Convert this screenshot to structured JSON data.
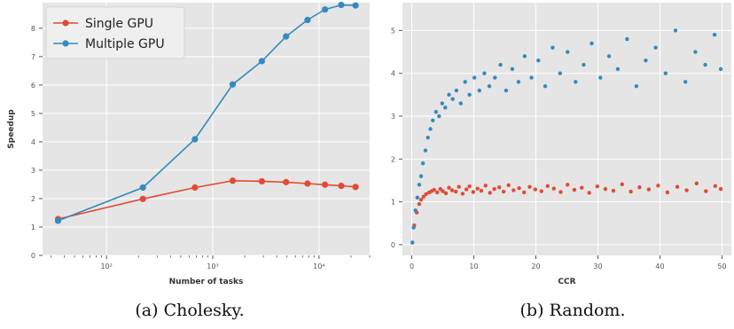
{
  "captions": [
    "(a) Cholesky.",
    "(b) Random."
  ],
  "colors": {
    "panel_bg": "#e5e5e5",
    "grid": "#ffffff",
    "tick": "#555555",
    "single": "#e24a33",
    "multiple": "#348abd"
  },
  "chart_data": [
    {
      "type": "line",
      "xscale": "log",
      "xlim": [
        25,
        30000
      ],
      "ylim": [
        0,
        8.9
      ],
      "xlabel": "Number of tasks",
      "ylabel": "Speedup",
      "xticks": [
        100,
        1000,
        10000
      ],
      "xtick_labels": [
        "10²",
        "10³",
        "10⁴"
      ],
      "yticks": [
        0,
        1,
        2,
        3,
        4,
        5,
        6,
        7,
        8
      ],
      "grid": true,
      "legend_position": "top-left",
      "series": [
        {
          "name": "Single GPU",
          "color": "#e24a33",
          "x": [
            35,
            220,
            680,
            1540,
            2900,
            4900,
            7800,
            11400,
            16200,
            22100
          ],
          "y": [
            1.28,
            1.99,
            2.39,
            2.63,
            2.61,
            2.58,
            2.53,
            2.49,
            2.45,
            2.41
          ]
        },
        {
          "name": "Multiple GPU",
          "color": "#348abd",
          "x": [
            35,
            220,
            680,
            1540,
            2900,
            4900,
            7800,
            11400,
            16200,
            22100
          ],
          "y": [
            1.22,
            2.39,
            4.09,
            6.02,
            6.84,
            7.71,
            8.29,
            8.66,
            8.82,
            8.8
          ]
        }
      ]
    },
    {
      "type": "scatter",
      "xlim": [
        -1.5,
        51.5
      ],
      "ylim": [
        -0.25,
        5.65
      ],
      "xlabel": "CCR",
      "ylabel": "",
      "xticks": [
        0,
        10,
        20,
        30,
        40,
        50
      ],
      "yticks": [
        0,
        1,
        2,
        3,
        4,
        5
      ],
      "grid": true,
      "series": [
        {
          "name": "",
          "color": "#e24a33",
          "x": [
            0.1,
            0.4,
            0.8,
            1.2,
            1.5,
            1.9,
            2.3,
            2.8,
            3.2,
            3.6,
            4.1,
            4.6,
            5.0,
            5.5,
            6.0,
            6.5,
            7.1,
            7.6,
            8.2,
            8.8,
            9.3,
            9.9,
            10.6,
            11.2,
            11.9,
            12.6,
            13.3,
            14.1,
            14.8,
            15.6,
            16.4,
            17.3,
            18.1,
            19.0,
            19.9,
            20.9,
            21.9,
            22.9,
            24.0,
            25.1,
            26.2,
            27.4,
            28.6,
            29.9,
            31.2,
            32.5,
            33.9,
            35.3,
            36.7,
            38.2,
            39.7,
            41.2,
            42.8,
            44.3,
            45.9,
            47.4,
            48.9,
            49.8
          ],
          "y": [
            0.05,
            0.45,
            0.75,
            0.95,
            1.05,
            1.12,
            1.18,
            1.22,
            1.25,
            1.28,
            1.22,
            1.3,
            1.25,
            1.2,
            1.33,
            1.27,
            1.24,
            1.35,
            1.19,
            1.29,
            1.36,
            1.23,
            1.31,
            1.26,
            1.38,
            1.21,
            1.3,
            1.34,
            1.24,
            1.39,
            1.27,
            1.32,
            1.22,
            1.35,
            1.29,
            1.25,
            1.37,
            1.31,
            1.23,
            1.4,
            1.28,
            1.33,
            1.21,
            1.36,
            1.3,
            1.26,
            1.41,
            1.24,
            1.34,
            1.29,
            1.38,
            1.22,
            1.35,
            1.27,
            1.43,
            1.25,
            1.37,
            1.3
          ]
        },
        {
          "name": "",
          "color": "#348abd",
          "x": [
            0.1,
            0.3,
            0.6,
            0.9,
            1.2,
            1.5,
            1.8,
            2.2,
            2.6,
            3.0,
            3.4,
            3.9,
            4.4,
            4.9,
            5.4,
            6.0,
            6.6,
            7.2,
            7.9,
            8.6,
            9.3,
            10.1,
            10.9,
            11.7,
            12.5,
            13.4,
            14.3,
            15.2,
            16.2,
            17.2,
            18.2,
            19.3,
            20.4,
            21.5,
            22.7,
            23.9,
            25.1,
            26.4,
            27.7,
            29.0,
            30.4,
            31.8,
            33.2,
            34.7,
            36.2,
            37.7,
            39.3,
            40.9,
            42.5,
            44.1,
            45.7,
            47.3,
            48.8,
            49.8
          ],
          "y": [
            0.05,
            0.4,
            0.8,
            1.1,
            1.4,
            1.6,
            1.9,
            2.2,
            2.5,
            2.7,
            2.9,
            3.1,
            3.0,
            3.3,
            3.2,
            3.5,
            3.4,
            3.6,
            3.3,
            3.8,
            3.5,
            3.9,
            3.6,
            4.0,
            3.7,
            3.9,
            4.2,
            3.6,
            4.1,
            3.8,
            4.4,
            3.9,
            4.3,
            3.7,
            4.6,
            4.0,
            4.5,
            3.8,
            4.2,
            4.7,
            3.9,
            4.4,
            4.1,
            4.8,
            3.7,
            4.3,
            4.6,
            4.0,
            5.0,
            3.8,
            4.5,
            4.2,
            4.9,
            4.1
          ]
        }
      ]
    }
  ]
}
